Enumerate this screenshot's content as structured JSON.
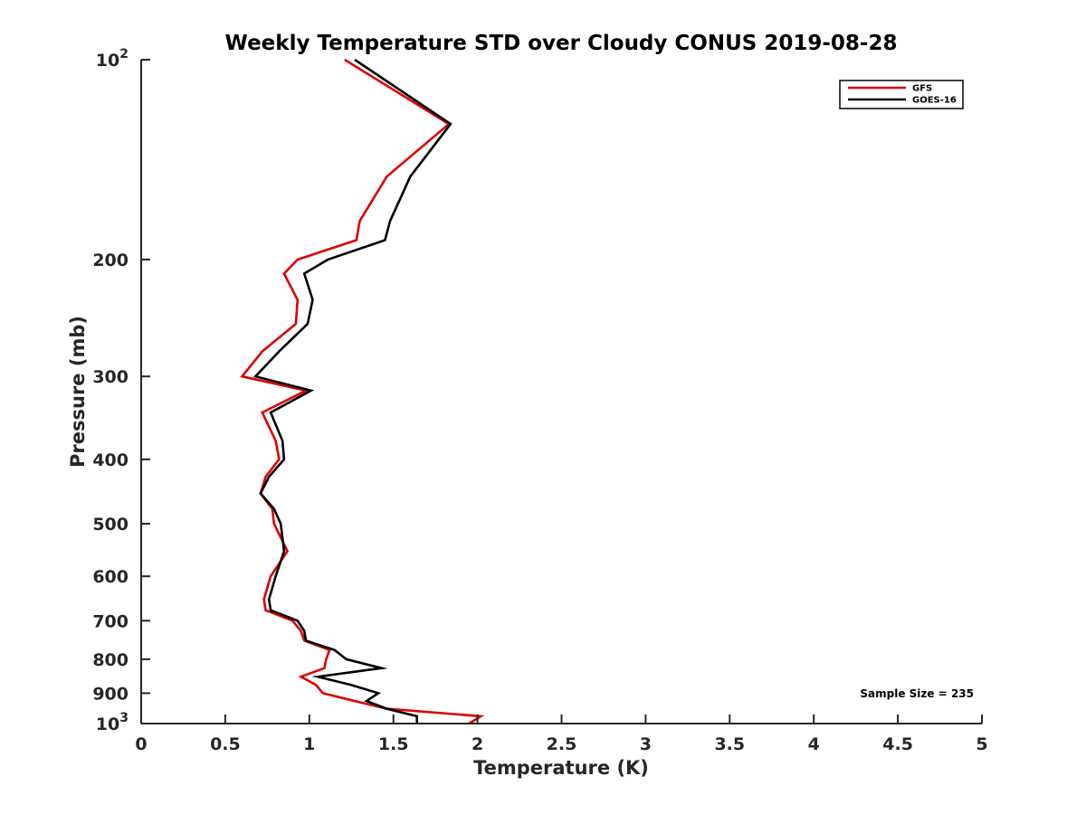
{
  "chart_data": {
    "type": "line",
    "title": "Weekly Temperature STD over Cloudy CONUS 2019-08-28",
    "xlabel": "Temperature (K)",
    "ylabel": "Pressure (mb)",
    "xlim": [
      0,
      5
    ],
    "ylim": [
      100,
      1000
    ],
    "y_scale": "log",
    "y_reversed": true,
    "x_ticks": [
      "0",
      "0.5",
      "1",
      "1.5",
      "2",
      "2.5",
      "3",
      "3.5",
      "4",
      "4.5",
      "5"
    ],
    "y_ticks": [
      {
        "value": 100,
        "base": "10",
        "exp": "2"
      },
      {
        "value": 200,
        "label": "200"
      },
      {
        "value": 300,
        "label": "300"
      },
      {
        "value": 400,
        "label": "400"
      },
      {
        "value": 500,
        "label": "500"
      },
      {
        "value": 600,
        "label": "600"
      },
      {
        "value": 700,
        "label": "700"
      },
      {
        "value": 800,
        "label": "800"
      },
      {
        "value": 900,
        "label": "900"
      },
      {
        "value": 1000,
        "base": "10",
        "exp": "3"
      }
    ],
    "grid": false,
    "legend_position": "top-right",
    "annotation": "Sample Size = 235",
    "series": [
      {
        "name": "GFS",
        "color": "#dd0000",
        "points": [
          [
            1.21,
            100
          ],
          [
            1.83,
            125
          ],
          [
            1.46,
            150
          ],
          [
            1.3,
            175
          ],
          [
            1.28,
            187
          ],
          [
            0.93,
            200
          ],
          [
            0.85,
            210
          ],
          [
            0.93,
            230
          ],
          [
            0.92,
            250
          ],
          [
            0.72,
            275
          ],
          [
            0.6,
            300
          ],
          [
            0.98,
            315
          ],
          [
            0.72,
            340
          ],
          [
            0.8,
            375
          ],
          [
            0.82,
            400
          ],
          [
            0.74,
            425
          ],
          [
            0.71,
            450
          ],
          [
            0.78,
            475
          ],
          [
            0.79,
            500
          ],
          [
            0.87,
            550
          ],
          [
            0.77,
            600
          ],
          [
            0.73,
            650
          ],
          [
            0.74,
            675
          ],
          [
            0.9,
            700
          ],
          [
            0.95,
            725
          ],
          [
            0.97,
            750
          ],
          [
            1.12,
            775
          ],
          [
            1.1,
            800
          ],
          [
            1.09,
            825
          ],
          [
            0.95,
            850
          ],
          [
            1.04,
            875
          ],
          [
            1.08,
            900
          ],
          [
            1.27,
            925
          ],
          [
            1.46,
            950
          ],
          [
            2.02,
            975
          ],
          [
            1.95,
            1000
          ]
        ]
      },
      {
        "name": "GOES-16",
        "color": "#000000",
        "points": [
          [
            1.27,
            100
          ],
          [
            1.84,
            125
          ],
          [
            1.6,
            150
          ],
          [
            1.48,
            175
          ],
          [
            1.45,
            187
          ],
          [
            1.11,
            200
          ],
          [
            0.97,
            210
          ],
          [
            1.02,
            230
          ],
          [
            0.99,
            250
          ],
          [
            0.82,
            275
          ],
          [
            0.68,
            300
          ],
          [
            1.01,
            315
          ],
          [
            0.77,
            340
          ],
          [
            0.84,
            375
          ],
          [
            0.85,
            400
          ],
          [
            0.76,
            425
          ],
          [
            0.71,
            450
          ],
          [
            0.79,
            475
          ],
          [
            0.83,
            500
          ],
          [
            0.85,
            550
          ],
          [
            0.8,
            600
          ],
          [
            0.76,
            650
          ],
          [
            0.77,
            675
          ],
          [
            0.93,
            700
          ],
          [
            0.97,
            725
          ],
          [
            0.98,
            750
          ],
          [
            1.15,
            775
          ],
          [
            1.22,
            800
          ],
          [
            1.43,
            825
          ],
          [
            1.05,
            850
          ],
          [
            1.25,
            875
          ],
          [
            1.41,
            900
          ],
          [
            1.34,
            925
          ],
          [
            1.46,
            950
          ],
          [
            1.64,
            975
          ],
          [
            1.64,
            1000
          ]
        ]
      }
    ]
  }
}
